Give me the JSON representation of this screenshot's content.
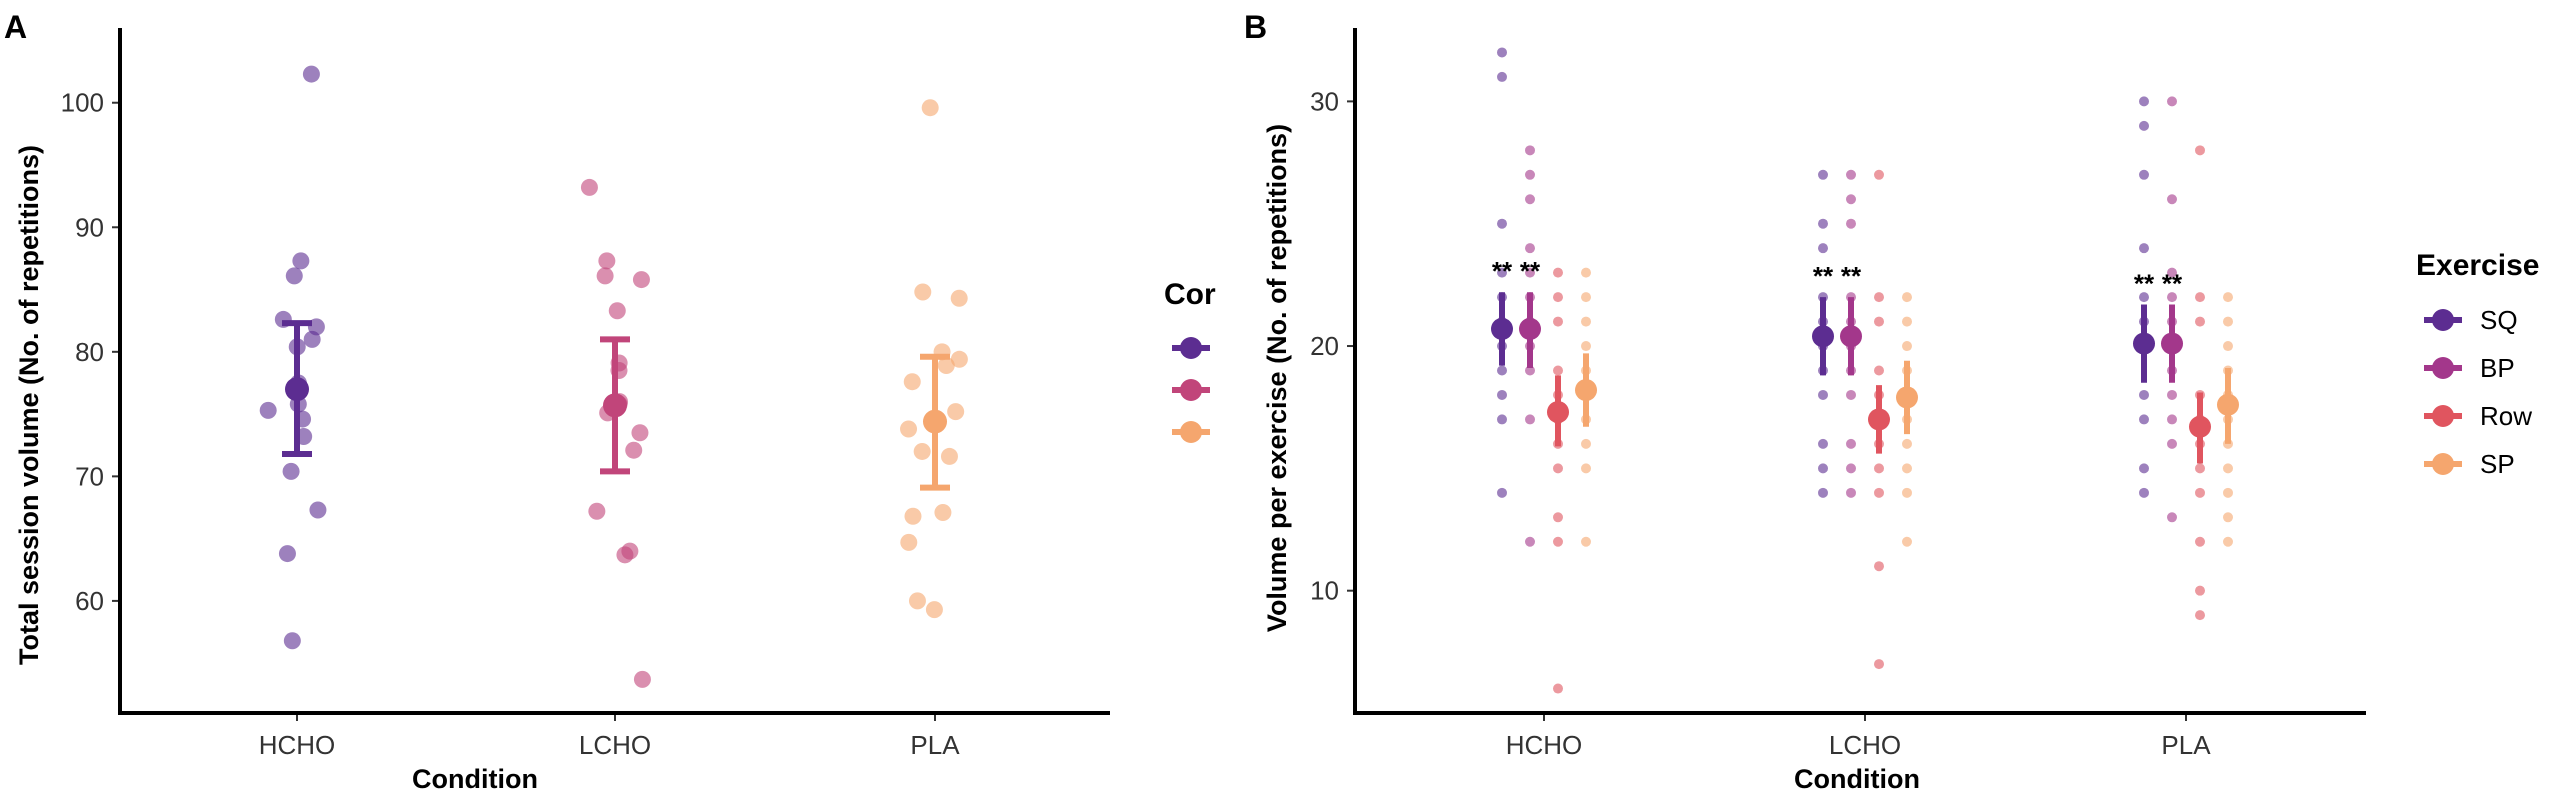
{
  "panel_a": {
    "tag": "A",
    "legend_title": "Cor",
    "chart_data": {
      "type": "scatter",
      "title": "",
      "xlabel": "Condition",
      "ylabel": "Total session volume (No. of repetitions)",
      "categories": [
        "HCHO",
        "LCHO",
        "PLA"
      ],
      "yticks": [
        60,
        70,
        80,
        90,
        100
      ],
      "ylim": [
        51,
        106
      ],
      "grid": false,
      "legend_position": "right",
      "colors": [
        "#5c2d91",
        "#c1457a",
        "#f5a66e"
      ],
      "summary": [
        {
          "category": "HCHO",
          "mean": 77.0,
          "lower": 71.8,
          "upper": 82.3
        },
        {
          "category": "LCHO",
          "mean": 75.7,
          "lower": 70.4,
          "upper": 81.0
        },
        {
          "category": "PLA",
          "mean": 74.4,
          "lower": 69.1,
          "upper": 79.6
        }
      ],
      "points": [
        [
          102.3,
          87.3,
          86.1,
          82.6,
          82.0,
          81.0,
          80.4,
          77.5,
          75.8,
          75.3,
          74.6,
          73.2,
          70.4,
          67.3,
          63.8,
          56.8
        ],
        [
          93.2,
          87.3,
          86.1,
          85.8,
          83.3,
          79.1,
          78.5,
          76.0,
          75.8,
          75.1,
          73.5,
          72.1,
          67.2,
          64.0,
          63.7,
          53.7
        ],
        [
          99.6,
          84.8,
          84.3,
          80.0,
          79.4,
          78.9,
          77.6,
          75.2,
          73.8,
          72.0,
          71.6,
          67.1,
          66.8,
          64.7,
          60.0,
          59.3
        ]
      ]
    }
  },
  "panel_b": {
    "tag": "B",
    "chart_data": {
      "type": "scatter",
      "title": "",
      "xlabel": "Condition",
      "ylabel": "Volume per exercise (No. of repetitions)",
      "categories": [
        "HCHO",
        "LCHO",
        "PLA"
      ],
      "yticks": [
        10,
        20,
        30
      ],
      "ylim": [
        5,
        33
      ],
      "grid": false,
      "legend_position": "right",
      "legend_title": "Exercise",
      "significance_marker": "**",
      "series": [
        {
          "name": "SQ",
          "color": "#5c2d91",
          "means": [
            20.7,
            20.4,
            20.1
          ],
          "lower": [
            19.2,
            18.8,
            18.5
          ],
          "upper": [
            22.2,
            22.0,
            21.7
          ],
          "significant": [
            true,
            true,
            true
          ],
          "points": [
            [
              32,
              31,
              25,
              23,
              22,
              21,
              20,
              19,
              18,
              17,
              14
            ],
            [
              27,
              25,
              24,
              22,
              21,
              20,
              19,
              18,
              16,
              15,
              14
            ],
            [
              30,
              29,
              27,
              24,
              22,
              21,
              20,
              18,
              17,
              15,
              14
            ]
          ]
        },
        {
          "name": "BP",
          "color": "#a3378b",
          "means": [
            20.7,
            20.4,
            20.1
          ],
          "lower": [
            19.1,
            18.8,
            18.5
          ],
          "upper": [
            22.2,
            22.0,
            21.7
          ],
          "significant": [
            true,
            true,
            true
          ],
          "points": [
            [
              28,
              27,
              26,
              24,
              23,
              22,
              21,
              20,
              19,
              17,
              12
            ],
            [
              27,
              26,
              25,
              22,
              21,
              20,
              19,
              18,
              16,
              15,
              14
            ],
            [
              30,
              26,
              23,
              22,
              21,
              20,
              19,
              18,
              17,
              16,
              13
            ]
          ]
        },
        {
          "name": "Row",
          "color": "#e0555f",
          "means": [
            17.3,
            17.0,
            16.7
          ],
          "lower": [
            15.9,
            15.6,
            15.2
          ],
          "upper": [
            18.8,
            18.4,
            18.1
          ],
          "significant": [
            false,
            false,
            false
          ],
          "points": [
            [
              23,
              22,
              21,
              19,
              18,
              17,
              16,
              15,
              13,
              12,
              6
            ],
            [
              27,
              22,
              21,
              19,
              18,
              17,
              16,
              15,
              14,
              11,
              7
            ],
            [
              28,
              22,
              21,
              18,
              17,
              16,
              15,
              14,
              12,
              10,
              9
            ]
          ]
        },
        {
          "name": "SP",
          "color": "#f5a66e",
          "means": [
            18.2,
            17.9,
            17.6
          ],
          "lower": [
            16.7,
            16.4,
            16.0
          ],
          "upper": [
            19.7,
            19.4,
            19.1
          ],
          "significant": [
            false,
            false,
            false
          ],
          "points": [
            [
              23,
              22,
              21,
              20,
              19,
              18,
              17,
              16,
              15,
              12
            ],
            [
              22,
              21,
              20,
              19,
              18,
              17,
              16,
              15,
              14,
              12
            ],
            [
              22,
              21,
              20,
              19,
              18,
              17,
              16,
              15,
              14,
              13,
              12
            ]
          ]
        }
      ]
    }
  }
}
